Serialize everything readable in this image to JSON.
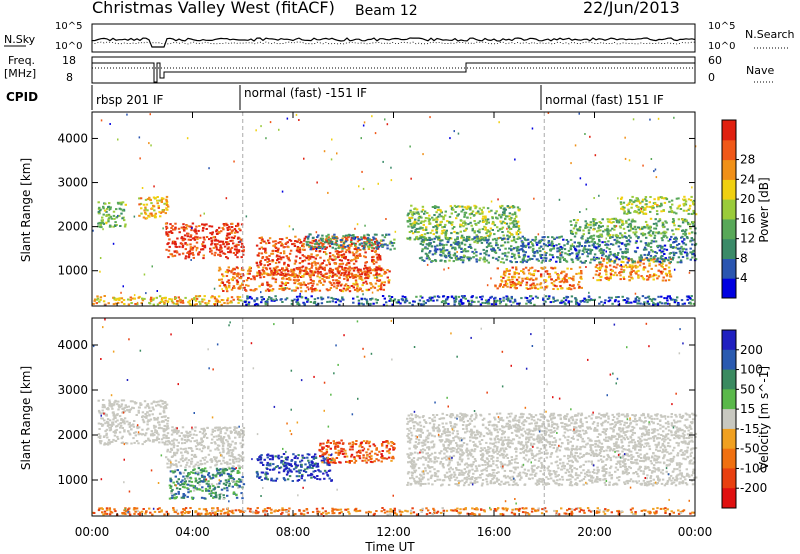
{
  "header": {
    "station": "Christmas Valley West (fitACF)",
    "beam": "Beam 12",
    "date": "22/Jun/2013"
  },
  "strip": {
    "nsky_label": "N.Sky",
    "nsearch_label": "N.Search",
    "freq_label_1": "Freq.",
    "freq_label_2": "[MHz]",
    "nave_label": "Nave",
    "cpid_label": "CPID",
    "nsky_ticks": [
      "10^5",
      "10^0"
    ],
    "nsearch_ticks": [
      "10^5",
      "10^0"
    ],
    "freq_ticks": [
      "18",
      "8"
    ],
    "nave_ticks": [
      "60",
      "0"
    ],
    "modes": [
      {
        "label": "rbsp 201 IF",
        "start": 0.0
      },
      {
        "label": "normal (fast) -151 IF",
        "start": 6.0
      },
      {
        "label": "normal (fast) 151 IF",
        "start": 18.0
      }
    ]
  },
  "colors": {
    "power": [
      "#0000e0",
      "#2a55b0",
      "#3a8a68",
      "#58a858",
      "#9acb3a",
      "#f0d010",
      "#f09018",
      "#f05818",
      "#e02010"
    ],
    "velocity": [
      "#2020c0",
      "#2a5ab0",
      "#3a8a60",
      "#5ab84a",
      "#c8c8c0",
      "#f0a020",
      "#f07010",
      "#e84010",
      "#e01010"
    ],
    "ground_scatter": "#c8c8c0"
  },
  "chart_data": [
    {
      "type": "heatmap",
      "name": "power-panel",
      "ylabel": "Slant Range [km]",
      "xlabel": "Time UT",
      "xlim": [
        0,
        24
      ],
      "ylim": [
        200,
        4600
      ],
      "x_ticks": [
        "00:00",
        "04:00",
        "08:00",
        "12:00",
        "16:00",
        "20:00",
        "00:00"
      ],
      "y_ticks": [
        "1000",
        "2000",
        "3000",
        "4000"
      ],
      "colorbar": {
        "label": "Power [dB]",
        "ticks": [
          "4",
          "8",
          "12",
          "16",
          "20",
          "24",
          "28"
        ],
        "range": [
          0,
          30
        ]
      },
      "regions": [
        {
          "t0": 2.9,
          "t1": 6.0,
          "r0": 1300,
          "r1": 2100,
          "level": 0.92
        },
        {
          "t0": 5.0,
          "t1": 11.8,
          "r0": 550,
          "r1": 1100,
          "level": 0.8
        },
        {
          "t0": 6.5,
          "t1": 11.5,
          "r0": 900,
          "r1": 1800,
          "level": 0.86
        },
        {
          "t0": 8.5,
          "t1": 12.0,
          "r0": 1500,
          "r1": 1850,
          "level": 0.3
        },
        {
          "t0": 1.8,
          "t1": 3.0,
          "r0": 2200,
          "r1": 2700,
          "level": 0.65
        },
        {
          "t0": 0.2,
          "t1": 1.3,
          "r0": 2000,
          "r1": 2600,
          "level": 0.4
        },
        {
          "t0": 12.5,
          "t1": 17.0,
          "r0": 1700,
          "r1": 2500,
          "level": 0.45
        },
        {
          "t0": 13.0,
          "t1": 17.0,
          "r0": 1200,
          "r1": 1800,
          "level": 0.3
        },
        {
          "t0": 16.0,
          "t1": 19.5,
          "r0": 600,
          "r1": 1100,
          "level": 0.75
        },
        {
          "t0": 20.0,
          "t1": 23.0,
          "r0": 800,
          "r1": 1300,
          "level": 0.72
        },
        {
          "t0": 17.0,
          "t1": 24.0,
          "r0": 1200,
          "r1": 1800,
          "level": 0.25
        },
        {
          "t0": 19.0,
          "t1": 24.0,
          "r0": 1800,
          "r1": 2200,
          "level": 0.4
        },
        {
          "t0": 21.0,
          "t1": 24.0,
          "r0": 2300,
          "r1": 2700,
          "level": 0.5
        },
        {
          "t0": 6.0,
          "t1": 24.0,
          "r0": 250,
          "r1": 450,
          "level": 0.2
        },
        {
          "t0": 0.0,
          "t1": 6.0,
          "r0": 250,
          "r1": 450,
          "level": 0.65
        }
      ]
    },
    {
      "type": "heatmap",
      "name": "velocity-panel",
      "ylabel": "Slant Range [km]",
      "xlabel": "Time UT",
      "xlim": [
        0,
        24
      ],
      "ylim": [
        200,
        4600
      ],
      "x_ticks": [
        "00:00",
        "04:00",
        "08:00",
        "12:00",
        "16:00",
        "20:00",
        "00:00"
      ],
      "y_ticks": [
        "1000",
        "2000",
        "3000",
        "4000"
      ],
      "colorbar": {
        "label": "Velocity [m s^-1]",
        "ticks": [
          "200",
          "100",
          "50",
          "15",
          "-15",
          "-50",
          "-100",
          "-200"
        ],
        "range": [
          -250,
          250
        ]
      },
      "regions": [
        {
          "t0": 2.9,
          "t1": 6.0,
          "r0": 1300,
          "r1": 2200,
          "kind": "ground"
        },
        {
          "t0": 3.0,
          "t1": 6.0,
          "r0": 600,
          "r1": 1300,
          "level": 0.3
        },
        {
          "t0": 6.5,
          "t1": 9.5,
          "r0": 1000,
          "r1": 1600,
          "level": 0.1
        },
        {
          "t0": 9.0,
          "t1": 12.0,
          "r0": 1400,
          "r1": 1900,
          "level": 0.8
        },
        {
          "t0": 0.2,
          "t1": 3.0,
          "r0": 1800,
          "r1": 2800,
          "kind": "ground"
        },
        {
          "t0": 12.5,
          "t1": 24.0,
          "r0": 900,
          "r1": 2500,
          "kind": "ground"
        },
        {
          "t0": 0.0,
          "t1": 24.0,
          "r0": 250,
          "r1": 400,
          "level": 0.7
        }
      ]
    }
  ]
}
